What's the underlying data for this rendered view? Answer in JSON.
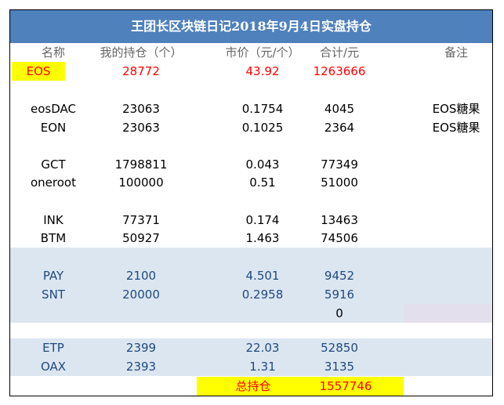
{
  "title": "王团长区块链日记2018年9月4日实盘持仓",
  "headers": [
    "名称",
    "我的持仓（个）",
    "市价（元/个）",
    "合计/元",
    "备注"
  ],
  "rows": [
    {
      "name": "EOS",
      "holding": "28772",
      "price": "43.92",
      "total": "1263666",
      "note": ""
    },
    {
      "name": "eosDAC",
      "holding": "23063",
      "price": "0.1754",
      "total": "4045",
      "note": "EOS糖果"
    },
    {
      "name": "EON",
      "holding": "23063",
      "price": "0.1025",
      "total": "2364",
      "note": "EOS糖果"
    },
    {
      "name": "GCT",
      "holding": "1798811",
      "price": "0.043",
      "total": "77349",
      "note": ""
    },
    {
      "name": "oneroot",
      "holding": "100000",
      "price": "0.51",
      "total": "51000",
      "note": ""
    },
    {
      "name": "INK",
      "holding": "77371",
      "price": "0.174",
      "total": "13463",
      "note": ""
    },
    {
      "name": "BTM",
      "holding": "50927",
      "price": "1.463",
      "total": "74506",
      "note": ""
    },
    {
      "name": "PAY",
      "holding": "2100",
      "price": "4.501",
      "total": "9452",
      "note": ""
    },
    {
      "name": "SNT",
      "holding": "20000",
      "price": "0.2958",
      "total": "5916",
      "note": ""
    },
    {
      "name": "",
      "holding": "",
      "price": "",
      "total": "0",
      "note": ""
    },
    {
      "name": "ETP",
      "holding": "2399",
      "price": "22.03",
      "total": "52850",
      "note": ""
    },
    {
      "name": "OAX",
      "holding": "2393",
      "price": "1.31",
      "total": "3135",
      "note": ""
    }
  ],
  "footer": {
    "label": "总持仓",
    "total": "1557746"
  },
  "colors": {
    "title_bg": "#4f81bd",
    "shade": "#dce6f1",
    "highlight": "#ffff00",
    "accent_red": "#ff0000",
    "blue_text": "#1f497d"
  }
}
